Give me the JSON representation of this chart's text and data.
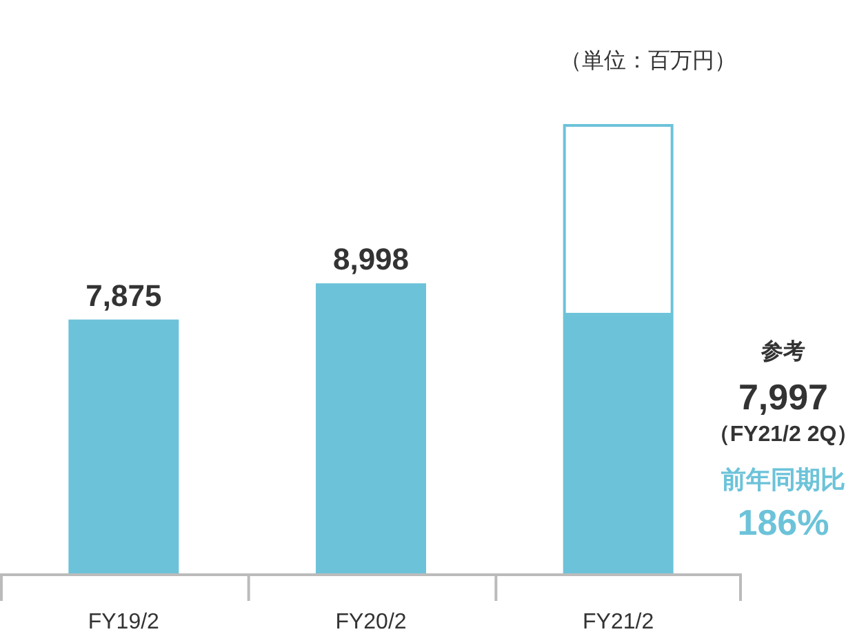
{
  "chart_data": {
    "type": "bar",
    "stacked": true,
    "categories": [
      "FY19/2",
      "FY20/2",
      "FY21/2"
    ],
    "series": [
      {
        "color": "#6cc3d9",
        "values": [
          7875,
          8998,
          7997
        ],
        "value_labels": [
          "7,875",
          "8,998",
          null
        ]
      },
      {
        "color": "#ffffff",
        "values": [
          null,
          null,
          5900
        ]
      }
    ],
    "annotations": [
      "（単位：百万円）",
      "参考",
      "7,997",
      "（FY21/2 2Q）",
      "前年同期比",
      "186%"
    ]
  }
}
